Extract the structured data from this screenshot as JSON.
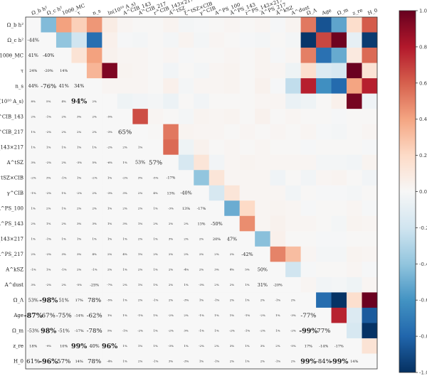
{
  "chart_data": {
    "type": "heatmap",
    "title": "",
    "labels": [
      "Ω_b h²",
      "Ω_c h²",
      "100θ_MC",
      "τ",
      "n_s",
      "ln(10¹⁰ A_s)",
      "A^CIB_143",
      "A^CIB_217",
      "r^CIB_143×217",
      "A^tSZ",
      "ξ^tSZ×CIB",
      "γ^CIB",
      "A^PS_100",
      "A^PS_143",
      "r^PS_143×217",
      "A^PS_217",
      "A^kSZ",
      "A^dust",
      "Ω_Λ",
      "Age",
      "Ω_m",
      "z_re",
      "H_0"
    ],
    "colorbar": {
      "min": -1.0,
      "max": 1.0,
      "ticks": [
        "1.0",
        "0.8",
        "0.6",
        "0.4",
        "0.2",
        "0.0",
        "-0.2",
        "-0.4",
        "-0.6",
        "-0.8",
        "-1.0"
      ]
    },
    "cmap": [
      "#053061",
      "#2166ac",
      "#4393c3",
      "#92c5de",
      "#d1e5f0",
      "#f7f7f7",
      "#fddbc7",
      "#f4a582",
      "#d6604d",
      "#b2182b",
      "#67001f"
    ],
    "matrix": [
      [
        1.0,
        -0.44,
        0.41,
        0.24,
        0.44,
        0.08,
        0.02,
        0.01,
        0.01,
        0.03,
        -0.02,
        -0.01,
        0.01,
        0.02,
        0.01,
        0.02,
        -0.01,
        0.03,
        0.53,
        -0.87,
        -0.53,
        0.18,
        0.61
      ],
      [
        -0.44,
        1.0,
        -0.4,
        -0.2,
        -0.76,
        0.05,
        -0.01,
        -0.02,
        0.01,
        -0.02,
        0.03,
        -0.02,
        0.02,
        0.01,
        -0.01,
        -0.02,
        0.01,
        -0.02,
        -0.98,
        0.67,
        0.98,
        -0.09,
        -0.96
      ],
      [
        0.41,
        -0.4,
        1.0,
        0.14,
        0.41,
        0.04,
        0.02,
        0.02,
        0.01,
        0.02,
        -0.01,
        0.01,
        0.01,
        0.02,
        0.01,
        0.03,
        -0.01,
        0.02,
        0.51,
        -0.75,
        -0.51,
        0.1,
        0.57
      ],
      [
        0.24,
        -0.2,
        0.14,
        1.0,
        0.34,
        0.94,
        0.03,
        0.02,
        0.01,
        -0.03,
        0.01,
        -0.02,
        0.02,
        0.03,
        0.01,
        0.03,
        0.02,
        -0.05,
        0.17,
        -0.14,
        -0.17,
        0.99,
        0.14
      ],
      [
        0.44,
        -0.76,
        0.41,
        0.34,
        1.0,
        0.02,
        0.02,
        0.02,
        0.01,
        0.05,
        -0.02,
        0.02,
        0.02,
        0.03,
        0.01,
        0.04,
        -0.01,
        -0.25,
        0.78,
        -0.62,
        -0.78,
        0.4,
        0.78
      ],
      [
        0.08,
        0.05,
        0.04,
        0.94,
        0.02,
        1.0,
        -0.05,
        -0.03,
        -0.02,
        -0.06,
        0.01,
        -0.03,
        0.01,
        0.01,
        0.01,
        0.02,
        0.02,
        -0.07,
        -0.05,
        0.01,
        0.05,
        0.96,
        -0.04
      ],
      [
        0.02,
        -0.01,
        0.02,
        0.03,
        0.02,
        -0.05,
        1.0,
        0.65,
        0.02,
        0.01,
        -0.02,
        0.03,
        0.02,
        0.03,
        0.01,
        0.04,
        0.01,
        0.02,
        0.01,
        0.01,
        -0.01,
        0.01,
        0.01
      ],
      [
        0.01,
        -0.02,
        0.02,
        0.02,
        0.02,
        -0.03,
        0.65,
        1.0,
        0.01,
        0.53,
        0.03,
        0.02,
        0.02,
        0.01,
        0.02,
        0.01,
        0.02,
        0.01,
        0.02,
        -0.01,
        -0.02,
        0.01,
        0.02
      ],
      [
        0.01,
        0.01,
        0.01,
        0.01,
        0.01,
        -0.02,
        0.02,
        0.01,
        1.0,
        0.57,
        -0.05,
        0.04,
        0.01,
        0.02,
        0.01,
        0.02,
        0.01,
        0.01,
        -0.01,
        0.01,
        0.01,
        0.01,
        -0.01
      ],
      [
        0.03,
        -0.02,
        0.02,
        -0.03,
        0.05,
        -0.06,
        0.01,
        0.53,
        0.57,
        1.0,
        -0.17,
        0.13,
        -0.03,
        0.02,
        0.03,
        0.02,
        0.02,
        0.02,
        0.02,
        -0.02,
        -0.02,
        -0.03,
        0.03
      ],
      [
        -0.02,
        0.03,
        -0.01,
        0.01,
        -0.02,
        0.01,
        -0.02,
        0.03,
        -0.05,
        -0.17,
        1.0,
        -0.4,
        0.13,
        0.02,
        0.02,
        0.02,
        -0.04,
        0.01,
        -0.03,
        0.02,
        0.03,
        0.01,
        -0.03
      ],
      [
        -0.01,
        -0.02,
        0.01,
        -0.02,
        0.02,
        -0.03,
        0.03,
        0.02,
        0.04,
        0.13,
        -0.4,
        1.0,
        -0.17,
        0.13,
        0.02,
        0.02,
        0.02,
        -0.03,
        0.01,
        -0.01,
        -0.01,
        -0.02,
        0.01
      ],
      [
        0.01,
        0.02,
        0.01,
        0.02,
        0.02,
        0.01,
        0.02,
        0.02,
        0.01,
        -0.03,
        0.13,
        -0.17,
        1.0,
        -0.5,
        0.2,
        0.02,
        0.03,
        0.02,
        -0.01,
        0.01,
        0.01,
        0.02,
        -0.01
      ],
      [
        0.02,
        0.01,
        0.02,
        0.03,
        0.03,
        0.01,
        0.03,
        0.01,
        0.02,
        0.02,
        0.02,
        0.13,
        -0.5,
        1.0,
        0.47,
        0.02,
        0.04,
        0.02,
        0.02,
        0.01,
        -0.02,
        0.03,
        0.02
      ],
      [
        0.01,
        -0.01,
        0.01,
        0.01,
        0.01,
        0.01,
        0.01,
        0.02,
        0.01,
        0.03,
        0.02,
        0.02,
        0.2,
        0.47,
        1.0,
        -0.42,
        0.05,
        0.01,
        0.01,
        -0.01,
        -0.01,
        0.01,
        0.01
      ],
      [
        0.02,
        -0.02,
        0.03,
        0.03,
        0.04,
        0.02,
        0.04,
        0.01,
        0.02,
        0.02,
        0.02,
        0.02,
        0.02,
        0.02,
        -0.42,
        1.0,
        0.5,
        0.31,
        0.02,
        -0.02,
        -0.02,
        0.03,
        0.02
      ],
      [
        -0.01,
        0.01,
        -0.01,
        0.02,
        -0.01,
        0.02,
        0.01,
        0.02,
        0.01,
        0.02,
        -0.04,
        0.02,
        0.03,
        0.04,
        0.05,
        0.5,
        1.0,
        -0.2,
        -0.01,
        0.01,
        0.01,
        0.02,
        -0.01
      ],
      [
        0.03,
        -0.02,
        0.02,
        -0.05,
        -0.25,
        -0.07,
        0.02,
        0.01,
        0.01,
        0.02,
        0.01,
        -0.03,
        0.02,
        0.02,
        0.01,
        0.31,
        -0.2,
        1.0,
        0.02,
        -0.03,
        -0.02,
        -0.05,
        0.02
      ],
      [
        0.53,
        -0.98,
        0.51,
        0.17,
        0.78,
        -0.05,
        0.01,
        0.02,
        -0.01,
        0.02,
        -0.03,
        0.01,
        -0.01,
        0.02,
        0.01,
        0.02,
        -0.01,
        0.02,
        1.0,
        -0.77,
        -0.99,
        0.17,
        0.99
      ],
      [
        -0.87,
        0.67,
        -0.75,
        -0.14,
        -0.62,
        0.01,
        0.01,
        -0.01,
        0.01,
        -0.02,
        0.02,
        -0.01,
        0.01,
        0.01,
        -0.01,
        -0.02,
        0.01,
        -0.03,
        -0.77,
        1.0,
        0.77,
        -0.14,
        -0.84
      ],
      [
        -0.53,
        0.98,
        -0.51,
        -0.17,
        -0.78,
        0.05,
        -0.01,
        -0.02,
        0.01,
        -0.02,
        0.03,
        -0.01,
        0.01,
        -0.02,
        -0.01,
        -0.02,
        0.01,
        -0.02,
        -0.99,
        0.77,
        1.0,
        -0.17,
        -0.99
      ],
      [
        0.18,
        -0.09,
        0.1,
        0.99,
        0.4,
        0.96,
        0.01,
        0.01,
        0.01,
        -0.03,
        0.01,
        -0.02,
        0.02,
        0.03,
        0.01,
        0.03,
        0.02,
        -0.05,
        0.17,
        -0.14,
        -0.17,
        1.0,
        0.14
      ],
      [
        0.61,
        -0.96,
        0.57,
        0.14,
        0.78,
        -0.04,
        0.01,
        0.02,
        -0.01,
        0.03,
        -0.03,
        0.01,
        -0.01,
        0.02,
        0.01,
        0.02,
        -0.01,
        0.02,
        0.99,
        -0.84,
        -0.99,
        0.14,
        1.0
      ]
    ],
    "lower_triangle_labels": [
      [],
      [
        "-44%"
      ],
      [
        "41%",
        "-40%"
      ],
      [
        "24%",
        "-20%",
        "14%"
      ],
      [
        "44%",
        "-76%",
        "41%",
        "34%"
      ],
      [
        "8%",
        "5%",
        "4%",
        "94%",
        "2%"
      ],
      [
        "2%",
        "-1%",
        "2%",
        "3%",
        "2%",
        "-5%"
      ],
      [
        "1%",
        "-2%",
        "2%",
        "2%",
        "2%",
        "-3%",
        "65%"
      ],
      [
        "1%",
        "1%",
        "1%",
        "1%",
        "1%",
        "-2%",
        "2%",
        "1%"
      ],
      [
        "3%",
        "-2%",
        "2%",
        "-3%",
        "5%",
        "-6%",
        "1%",
        "53%",
        "57%"
      ],
      [
        "-2%",
        "3%",
        "-1%",
        "1%",
        "-2%",
        "1%",
        "-2%",
        "3%",
        "-5%",
        "-17%"
      ],
      [
        "-1%",
        "-2%",
        "1%",
        "-2%",
        "2%",
        "-3%",
        "3%",
        "2%",
        "4%",
        "13%",
        "-40%"
      ],
      [
        "1%",
        "2%",
        "1%",
        "2%",
        "2%",
        "1%",
        "2%",
        "2%",
        "1%",
        "-3%",
        "13%",
        "-17%"
      ],
      [
        "2%",
        "1%",
        "2%",
        "3%",
        "3%",
        "1%",
        "3%",
        "1%",
        "2%",
        "2%",
        "2%",
        "13%",
        "-50%"
      ],
      [
        "1%",
        "-1%",
        "1%",
        "1%",
        "1%",
        "1%",
        "1%",
        "2%",
        "1%",
        "3%",
        "2%",
        "2%",
        "20%",
        "47%"
      ],
      [
        "2%",
        "-2%",
        "3%",
        "3%",
        "4%",
        "2%",
        "4%",
        "1%",
        "2%",
        "2%",
        "2%",
        "2%",
        "2%",
        "2%",
        "-42%"
      ],
      [
        "-1%",
        "1%",
        "-1%",
        "2%",
        "-1%",
        "2%",
        "1%",
        "2%",
        "1%",
        "2%",
        "-4%",
        "2%",
        "3%",
        "4%",
        "5%",
        "50%"
      ],
      [
        "3%",
        "-2%",
        "2%",
        "-5%",
        "-25%",
        "-7%",
        "2%",
        "1%",
        "1%",
        "2%",
        "1%",
        "-3%",
        "2%",
        "2%",
        "1%",
        "31%",
        "-20%"
      ],
      [
        "53%",
        "-98%",
        "51%",
        "17%",
        "78%",
        "-5%",
        "1%",
        "2%",
        "-1%",
        "2%",
        "-3%",
        "1%",
        "-1%",
        "2%",
        "1%",
        "2%",
        "-1%",
        "2%"
      ],
      [
        "-87%",
        "67%",
        "-75%",
        "-14%",
        "-62%",
        "1%",
        "1%",
        "-1%",
        "1%",
        "-2%",
        "2%",
        "-1%",
        "1%",
        "1%",
        "-1%",
        "-2%",
        "1%",
        "-3%",
        "-77%"
      ],
      [
        "-53%",
        "98%",
        "-51%",
        "-17%",
        "-78%",
        "5%",
        "-1%",
        "-2%",
        "1%",
        "-2%",
        "3%",
        "-1%",
        "1%",
        "-2%",
        "-1%",
        "-2%",
        "1%",
        "-2%",
        "-99%",
        "77%"
      ],
      [
        "18%",
        "-9%",
        "10%",
        "99%",
        "40%",
        "96%",
        "1%",
        "1%",
        "1%",
        "-3%",
        "1%",
        "-2%",
        "2%",
        "3%",
        "1%",
        "3%",
        "2%",
        "-5%",
        "17%",
        "-14%",
        "-17%"
      ],
      [
        "61%",
        "-96%",
        "57%",
        "14%",
        "78%",
        "-4%",
        "1%",
        "2%",
        "-1%",
        "3%",
        "-3%",
        "1%",
        "-1%",
        "2%",
        "1%",
        "2%",
        "-1%",
        "2%",
        "99%",
        "-84%",
        "-99%",
        "14%"
      ]
    ]
  }
}
